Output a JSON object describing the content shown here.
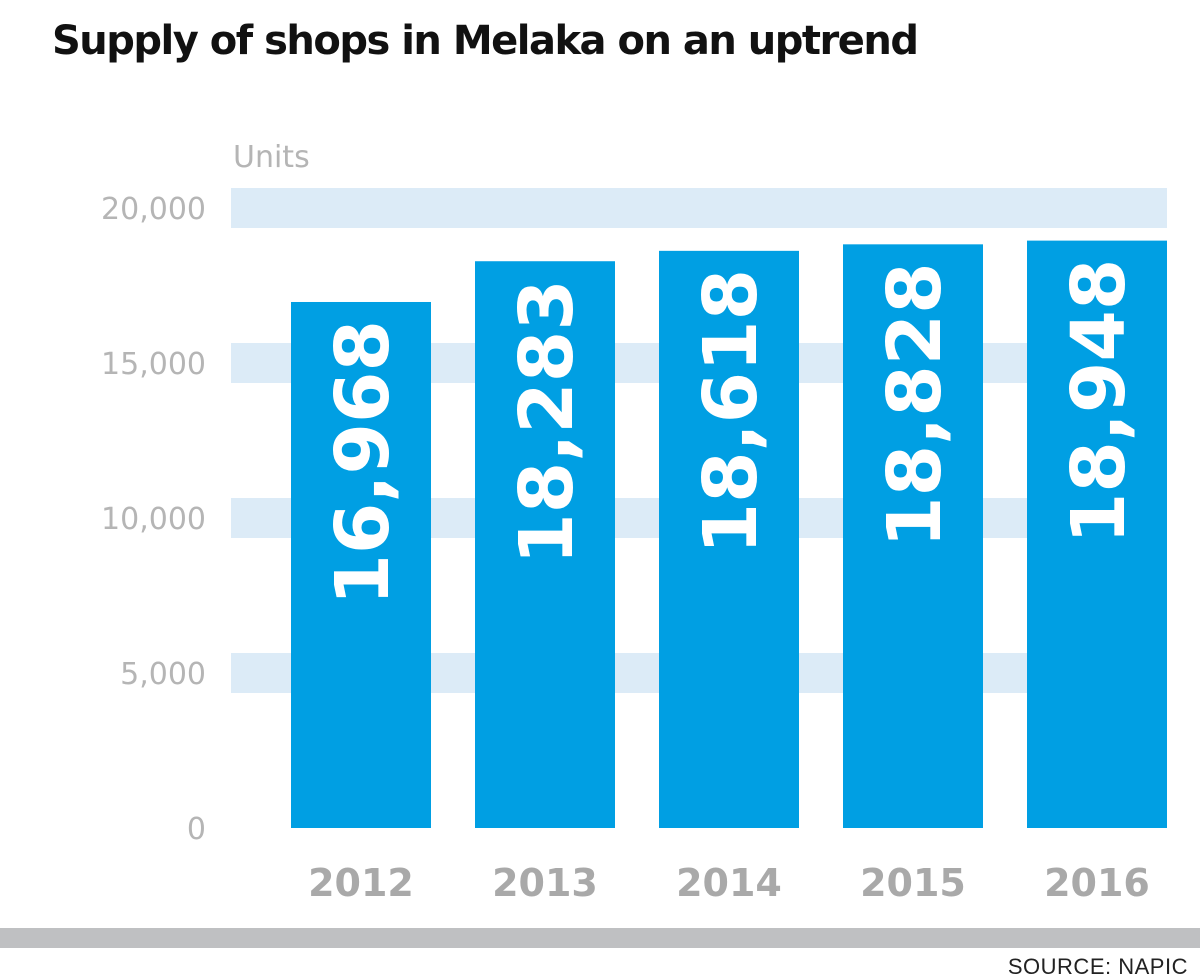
{
  "chart_data": {
    "type": "bar",
    "title": "Supply of shops in Melaka on an uptrend",
    "ylabel": "Units",
    "xlabel": "",
    "categories": [
      "2012",
      "2013",
      "2014",
      "2015",
      "2016"
    ],
    "values": [
      16968,
      18283,
      18618,
      18828,
      18948
    ],
    "data_labels": [
      "16,968",
      "18,283",
      "18,618",
      "18,828",
      "18,948"
    ],
    "ylim": [
      0,
      20000
    ],
    "yticks": [
      0,
      5000,
      10000,
      15000,
      20000
    ],
    "ytick_labels": [
      "0",
      "5,000",
      "10,000",
      "15,000",
      "20,000"
    ],
    "grid": true,
    "data_label_orientation": "vertical"
  },
  "source": {
    "label": "SOURCE:",
    "value": "NAPIC"
  },
  "colors": {
    "bar": "#009FE3",
    "band": "#DCEBF7",
    "tick_text": "#B5B5B5",
    "year_text": "#A9A9A9",
    "bar_label": "#FFFFFF",
    "footer": "#BFC0C2",
    "title": "#111111"
  }
}
